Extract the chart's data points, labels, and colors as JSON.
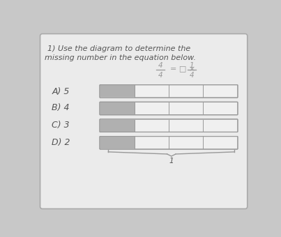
{
  "background_color": "#c8c8c8",
  "card_color": "#e8e8e8",
  "title_line1": "1) Use the diagram to determine the",
  "title_line2": "missing number in the equation below.",
  "choices": [
    "A) 5",
    "B) 4",
    "C) 3",
    "D) 2"
  ],
  "text_color": "#555555",
  "title_fontsize": 8.0,
  "choice_fontsize": 9.0,
  "bar_filled_color": "#b0b0b0",
  "bar_empty_color": "#f0f0f0",
  "bar_border_color": "#999999",
  "num_bars": 4,
  "num_sections": 4,
  "filled_sections": 1,
  "brace_color": "#999999",
  "eq_color": "#999999"
}
